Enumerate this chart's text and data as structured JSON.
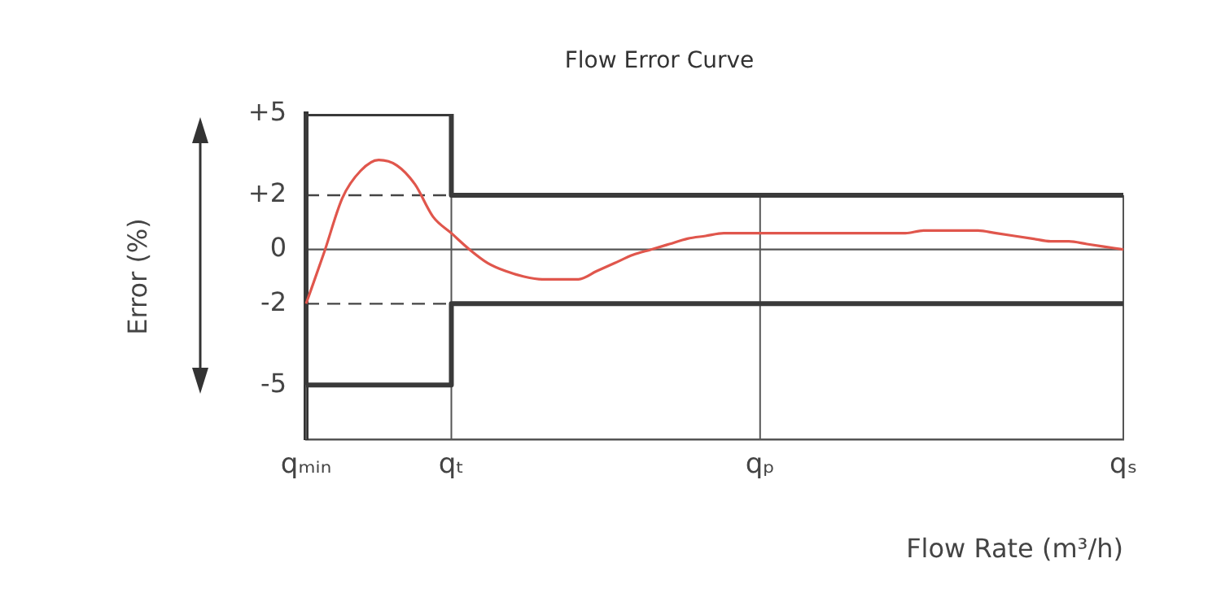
{
  "chart_data": {
    "type": "line",
    "title": "Flow Error Curve",
    "xlabel": "Flow Rate (m³/h)",
    "ylabel": "Error (%)",
    "categories": [
      "qₘᵢₙ",
      null,
      null,
      null,
      null,
      null,
      null,
      null,
      "qₜ",
      null,
      null,
      null,
      null,
      null,
      null,
      null,
      null,
      null,
      null,
      null,
      null,
      null,
      null,
      null,
      null,
      "qₚ",
      null,
      null,
      null,
      null,
      null,
      null,
      null,
      null,
      null,
      null,
      null,
      null,
      null,
      null,
      null,
      null,
      null,
      null,
      null,
      "qₛ"
    ],
    "series": [
      {
        "type": "step",
        "color": "#3a3a3a",
        "values": [
          5,
          5,
          5,
          5,
          5,
          5,
          5,
          5,
          5,
          2,
          2,
          2,
          2,
          2,
          2,
          2,
          2,
          2,
          2,
          2,
          2,
          2,
          2,
          2,
          2,
          2,
          2,
          2,
          2,
          2,
          2,
          2,
          2,
          2,
          2,
          2,
          2,
          2,
          2,
          2,
          2,
          2,
          2,
          2,
          2,
          2
        ]
      },
      {
        "type": "step",
        "color": "#3a3a3a",
        "values": [
          -5,
          -5,
          -5,
          -5,
          -5,
          -5,
          -5,
          -5,
          -5,
          -2,
          -2,
          -2,
          -2,
          -2,
          -2,
          -2,
          -2,
          -2,
          -2,
          -2,
          -2,
          -2,
          -2,
          -2,
          -2,
          -2,
          -2,
          -2,
          -2,
          -2,
          -2,
          -2,
          -2,
          -2,
          -2,
          -2,
          -2,
          -2,
          -2,
          -2,
          -2,
          -2,
          -2,
          -2,
          -2,
          -2
        ]
      },
      {
        "color": "#e0564c",
        "values": [
          -2,
          -0.1,
          1.9,
          2.9,
          3.3,
          3.1,
          2.4,
          1.2,
          0.6,
          0,
          -0.5,
          -0.8,
          -1,
          -1.1,
          -1.1,
          -1.1,
          -0.8,
          -0.5,
          -0.2,
          0,
          0.2,
          0.4,
          0.5,
          0.6,
          0.6,
          0.6,
          0.6,
          0.6,
          0.6,
          0.6,
          0.6,
          0.6,
          0.6,
          0.6,
          0.7,
          0.7,
          0.7,
          0.7,
          0.6,
          0.5,
          0.4,
          0.3,
          0.3,
          0.2,
          0.1,
          0
        ]
      }
    ],
    "ylim": [
      -7,
      5
    ],
    "yticks": [
      {
        "value": 5,
        "label": "+5"
      },
      {
        "value": 2,
        "label": "+2"
      },
      0,
      -2,
      -5
    ],
    "grid": "x",
    "marker": "none",
    "ref_lines": [
      {
        "axis": "y",
        "value": 0,
        "color": "#555555",
        "line_style": "solid"
      },
      {
        "axis": "y",
        "value": 2,
        "color": "#444444",
        "line_style": "dashed"
      },
      {
        "axis": "y",
        "value": -2,
        "color": "#444444",
        "line_style": "dashed"
      }
    ]
  }
}
